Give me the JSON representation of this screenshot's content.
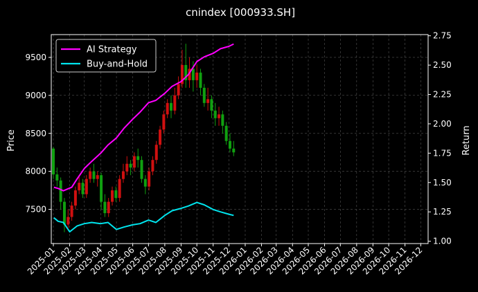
{
  "chart_data": {
    "type": "line",
    "title": "cnindex [000933.SH]",
    "ylabel": "Price",
    "y2label": "Return",
    "ylim": [
      7050,
      9800
    ],
    "y2lim": [
      0.98,
      2.76
    ],
    "yticks": [
      7500,
      8000,
      8500,
      9000,
      9500
    ],
    "y2ticks": [
      1.0,
      1.25,
      1.5,
      1.75,
      2.0,
      2.25,
      2.5,
      2.75
    ],
    "x_months": [
      "2025-01",
      "2025-02",
      "2025-03",
      "2025-04",
      "2025-05",
      "2025-06",
      "2025-07",
      "2025-08",
      "2025-09",
      "2025-10",
      "2025-11",
      "2025-12",
      "2026-01",
      "2026-02",
      "2026-03",
      "2026-04",
      "2026-05",
      "2026-06",
      "2026-07",
      "2026-08",
      "2026-09",
      "2026-10",
      "2026-11",
      "2026-12"
    ],
    "xlim": [
      "2024-12-28",
      "2026-12-15"
    ],
    "grid": true,
    "legend_position": "top-left",
    "colors": {
      "background": "#000000",
      "ai": "#ff00ff",
      "bh": "#00e5ee",
      "up": "#d01010",
      "down": "#10a010",
      "grid": "#555555"
    },
    "series": [
      {
        "name": "AI Strategy",
        "axis": "right",
        "x": [
          "2025-01-02",
          "2025-01-10",
          "2025-01-20",
          "2025-02-05",
          "2025-02-15",
          "2025-03-01",
          "2025-03-15",
          "2025-04-01",
          "2025-04-15",
          "2025-05-01",
          "2025-05-15",
          "2025-06-01",
          "2025-06-15",
          "2025-07-01",
          "2025-07-15",
          "2025-08-01",
          "2025-08-15",
          "2025-09-01",
          "2025-09-15",
          "2025-10-01",
          "2025-10-15",
          "2025-11-01",
          "2025-11-15",
          "2025-12-01",
          "2025-12-10"
        ],
        "values": [
          1.46,
          1.45,
          1.43,
          1.46,
          1.53,
          1.62,
          1.68,
          1.75,
          1.82,
          1.88,
          1.96,
          2.04,
          2.1,
          2.18,
          2.2,
          2.26,
          2.32,
          2.36,
          2.42,
          2.53,
          2.57,
          2.6,
          2.64,
          2.66,
          2.68
        ]
      },
      {
        "name": "Buy-and-Hold",
        "axis": "right",
        "x": [
          "2025-01-02",
          "2025-01-10",
          "2025-01-20",
          "2025-02-01",
          "2025-02-15",
          "2025-03-01",
          "2025-03-15",
          "2025-04-01",
          "2025-04-15",
          "2025-05-01",
          "2025-05-15",
          "2025-06-01",
          "2025-06-15",
          "2025-07-01",
          "2025-07-15",
          "2025-08-01",
          "2025-08-15",
          "2025-09-01",
          "2025-09-15",
          "2025-10-01",
          "2025-10-15",
          "2025-11-01",
          "2025-11-15",
          "2025-12-01",
          "2025-12-10"
        ],
        "values": [
          1.2,
          1.17,
          1.16,
          1.08,
          1.13,
          1.15,
          1.16,
          1.15,
          1.16,
          1.1,
          1.12,
          1.14,
          1.15,
          1.18,
          1.16,
          1.22,
          1.26,
          1.28,
          1.3,
          1.33,
          1.31,
          1.27,
          1.25,
          1.23,
          1.22
        ]
      }
    ],
    "candles": [
      {
        "x": "2025-01-01",
        "open": 8300,
        "close": 7960,
        "high": 8320,
        "low": 7900
      },
      {
        "x": "2025-01-08",
        "open": 7960,
        "close": 7880,
        "high": 8050,
        "low": 7800
      },
      {
        "x": "2025-01-15",
        "open": 7880,
        "close": 7600,
        "high": 7920,
        "low": 7500
      },
      {
        "x": "2025-01-22",
        "open": 7600,
        "close": 7300,
        "high": 7650,
        "low": 7200
      },
      {
        "x": "2025-01-29",
        "open": 7300,
        "close": 7400,
        "high": 7500,
        "low": 7250
      },
      {
        "x": "2025-02-05",
        "open": 7400,
        "close": 7550,
        "high": 7600,
        "low": 7350
      },
      {
        "x": "2025-02-12",
        "open": 7550,
        "close": 7750,
        "high": 7800,
        "low": 7500
      },
      {
        "x": "2025-02-19",
        "open": 7750,
        "close": 7850,
        "high": 7950,
        "low": 7700
      },
      {
        "x": "2025-02-26",
        "open": 7850,
        "close": 7700,
        "high": 7900,
        "low": 7650
      },
      {
        "x": "2025-03-05",
        "open": 7700,
        "close": 7900,
        "high": 7950,
        "low": 7650
      },
      {
        "x": "2025-03-12",
        "open": 7900,
        "close": 8000,
        "high": 8050,
        "low": 7850
      },
      {
        "x": "2025-03-19",
        "open": 8000,
        "close": 7900,
        "high": 8100,
        "low": 7850
      },
      {
        "x": "2025-03-26",
        "open": 7900,
        "close": 7950,
        "high": 8000,
        "low": 7800
      },
      {
        "x": "2025-04-02",
        "open": 7950,
        "close": 7600,
        "high": 7980,
        "low": 7500
      },
      {
        "x": "2025-04-09",
        "open": 7600,
        "close": 7450,
        "high": 7700,
        "low": 7400
      },
      {
        "x": "2025-04-16",
        "open": 7450,
        "close": 7600,
        "high": 7650,
        "low": 7400
      },
      {
        "x": "2025-04-23",
        "open": 7600,
        "close": 7750,
        "high": 7800,
        "low": 7550
      },
      {
        "x": "2025-04-30",
        "open": 7750,
        "close": 7650,
        "high": 7800,
        "low": 7600
      },
      {
        "x": "2025-05-07",
        "open": 7650,
        "close": 7900,
        "high": 7950,
        "low": 7600
      },
      {
        "x": "2025-05-14",
        "open": 7900,
        "close": 8000,
        "high": 8100,
        "low": 7850
      },
      {
        "x": "2025-05-21",
        "open": 8000,
        "close": 8100,
        "high": 8200,
        "low": 7950
      },
      {
        "x": "2025-05-28",
        "open": 8100,
        "close": 8050,
        "high": 8150,
        "low": 7950
      },
      {
        "x": "2025-06-04",
        "open": 8050,
        "close": 8200,
        "high": 8250,
        "low": 8000
      },
      {
        "x": "2025-06-11",
        "open": 8200,
        "close": 8150,
        "high": 8300,
        "low": 8050
      },
      {
        "x": "2025-06-18",
        "open": 8150,
        "close": 7900,
        "high": 8200,
        "low": 7850
      },
      {
        "x": "2025-06-25",
        "open": 7900,
        "close": 7800,
        "high": 7950,
        "low": 7700
      },
      {
        "x": "2025-07-02",
        "open": 7800,
        "close": 8000,
        "high": 8050,
        "low": 7750
      },
      {
        "x": "2025-07-09",
        "open": 8000,
        "close": 8150,
        "high": 8200,
        "low": 7950
      },
      {
        "x": "2025-07-16",
        "open": 8150,
        "close": 8350,
        "high": 8400,
        "low": 8100
      },
      {
        "x": "2025-07-23",
        "open": 8350,
        "close": 8550,
        "high": 8600,
        "low": 8300
      },
      {
        "x": "2025-07-30",
        "open": 8550,
        "close": 8750,
        "high": 8800,
        "low": 8500
      },
      {
        "x": "2025-08-06",
        "open": 8750,
        "close": 8900,
        "high": 8950,
        "low": 8700
      },
      {
        "x": "2025-08-13",
        "open": 8900,
        "close": 8800,
        "high": 9000,
        "low": 8700
      },
      {
        "x": "2025-08-20",
        "open": 8800,
        "close": 9000,
        "high": 9100,
        "low": 8750
      },
      {
        "x": "2025-08-27",
        "open": 9000,
        "close": 9150,
        "high": 9250,
        "low": 8950
      },
      {
        "x": "2025-09-03",
        "open": 9150,
        "close": 9400,
        "high": 9600,
        "low": 9100
      },
      {
        "x": "2025-09-10",
        "open": 9400,
        "close": 9200,
        "high": 9680,
        "low": 9100
      },
      {
        "x": "2025-09-17",
        "open": 9200,
        "close": 9350,
        "high": 9500,
        "low": 9100
      },
      {
        "x": "2025-09-24",
        "open": 9350,
        "close": 9200,
        "high": 9450,
        "low": 9050
      },
      {
        "x": "2025-10-01",
        "open": 9200,
        "close": 9300,
        "high": 9400,
        "low": 9100
      },
      {
        "x": "2025-10-08",
        "open": 9300,
        "close": 9100,
        "high": 9350,
        "low": 9000
      },
      {
        "x": "2025-10-15",
        "open": 9100,
        "close": 8900,
        "high": 9150,
        "low": 8850
      },
      {
        "x": "2025-10-22",
        "open": 8900,
        "close": 8950,
        "high": 9100,
        "low": 8800
      },
      {
        "x": "2025-10-29",
        "open": 8950,
        "close": 8800,
        "high": 9000,
        "low": 8700
      },
      {
        "x": "2025-11-05",
        "open": 8800,
        "close": 8700,
        "high": 8900,
        "low": 8600
      },
      {
        "x": "2025-11-12",
        "open": 8700,
        "close": 8750,
        "high": 8850,
        "low": 8600
      },
      {
        "x": "2025-11-19",
        "open": 8750,
        "close": 8600,
        "high": 8800,
        "low": 8500
      },
      {
        "x": "2025-11-26",
        "open": 8600,
        "close": 8400,
        "high": 8650,
        "low": 8350
      },
      {
        "x": "2025-12-03",
        "open": 8400,
        "close": 8300,
        "high": 8500,
        "low": 8250
      },
      {
        "x": "2025-12-10",
        "open": 8300,
        "close": 8250,
        "high": 8400,
        "low": 8200
      }
    ]
  }
}
